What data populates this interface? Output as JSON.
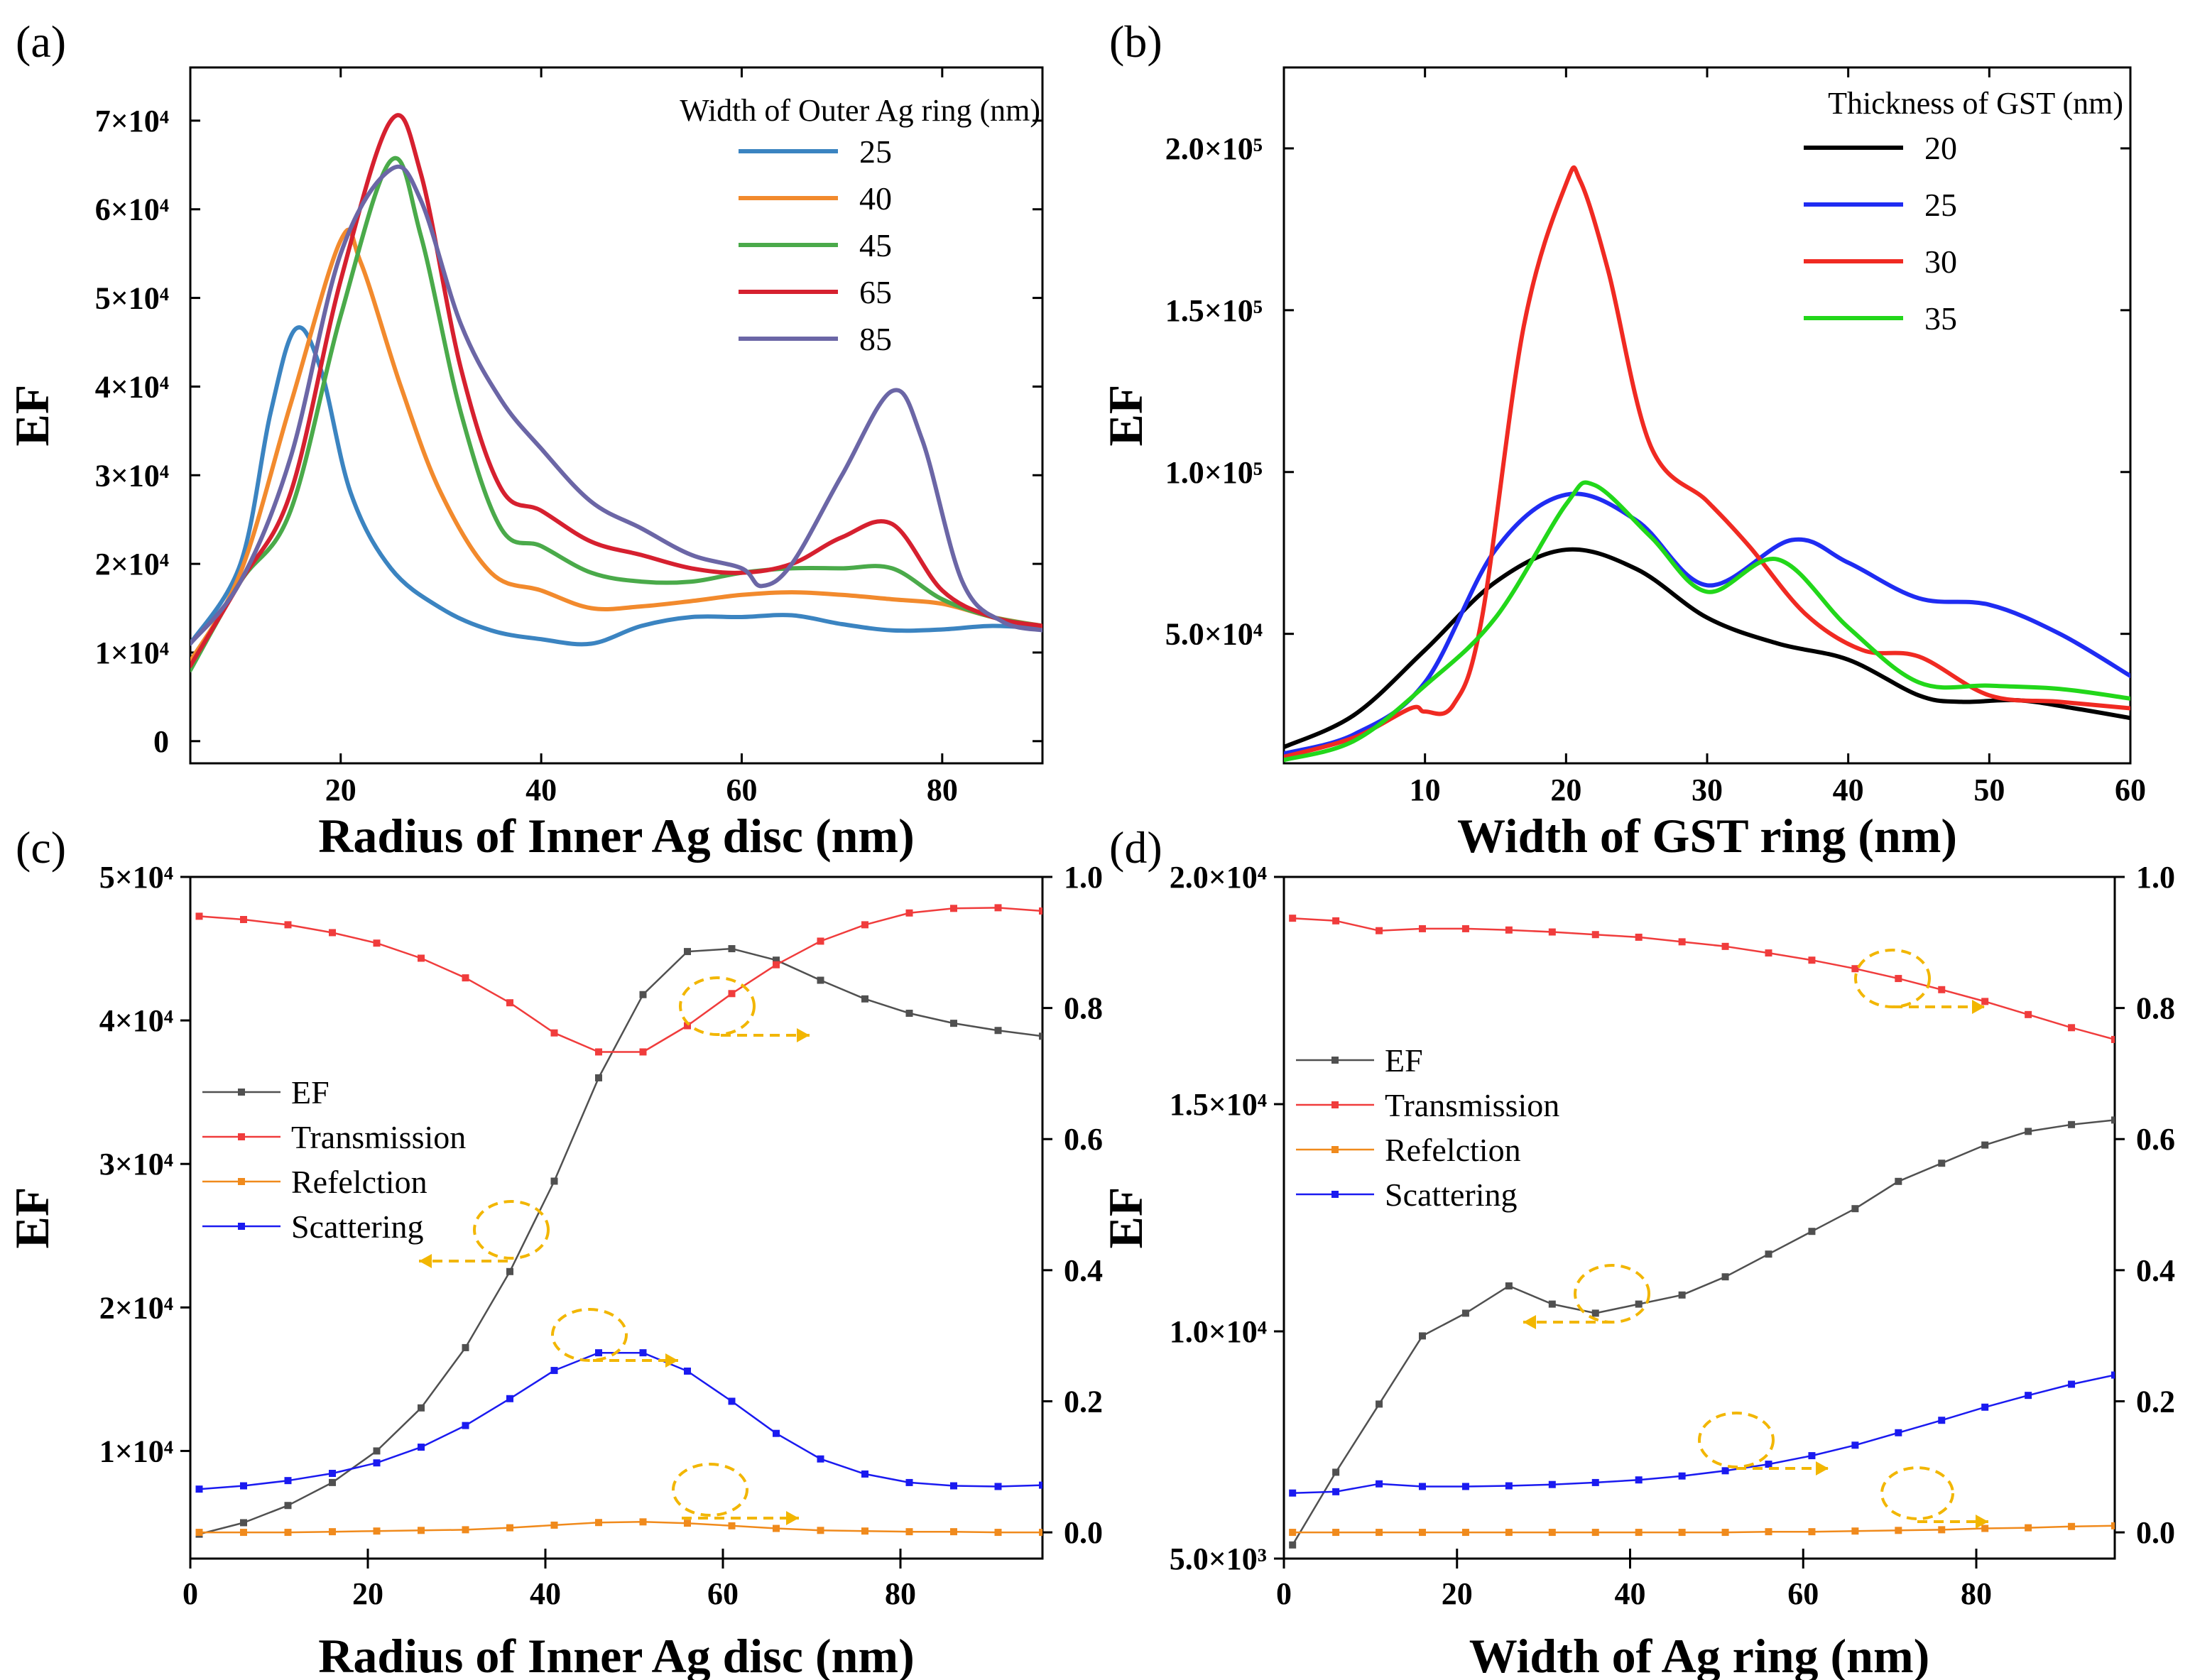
{
  "chart_data": [
    {
      "panel": "(a)",
      "type": "line",
      "xlabel": "Radius of Inner Ag disc (nm)",
      "ylabel": "EF",
      "xlim": [
        5,
        90
      ],
      "ylim": [
        -2500,
        76000
      ],
      "xticks": [
        20,
        40,
        60,
        80
      ],
      "yticks": [
        {
          "v": 0,
          "label": "0"
        },
        {
          "v": 10000,
          "label": "1×10⁴"
        },
        {
          "v": 20000,
          "label": "2×10⁴"
        },
        {
          "v": 30000,
          "label": "3×10⁴"
        },
        {
          "v": 40000,
          "label": "4×10⁴"
        },
        {
          "v": 50000,
          "label": "5×10⁴"
        },
        {
          "v": 60000,
          "label": "6×10⁴"
        },
        {
          "v": 70000,
          "label": "7×10⁴"
        }
      ],
      "legend_title": "Width of Outer Ag ring (nm)",
      "series": [
        {
          "name": "25",
          "color": "#3b84c1",
          "x": [
            5,
            10,
            13,
            15.5,
            18,
            21,
            25,
            30,
            35,
            40,
            45,
            50,
            55,
            60,
            65,
            70,
            75,
            80,
            85,
            90
          ],
          "y": [
            11000,
            20000,
            37000,
            46500,
            42000,
            28000,
            19500,
            15000,
            12500,
            11500,
            11000,
            13000,
            14000,
            14000,
            14200,
            13200,
            12500,
            12600,
            13000,
            12700
          ]
        },
        {
          "name": "40",
          "color": "#f28a2d",
          "x": [
            5,
            10,
            15,
            20,
            22,
            26,
            30,
            35,
            40,
            45,
            50,
            55,
            60,
            65,
            70,
            75,
            80,
            85,
            90
          ],
          "y": [
            9000,
            19000,
            38000,
            56500,
            54000,
            40000,
            28000,
            19000,
            17000,
            15000,
            15200,
            15800,
            16500,
            16800,
            16500,
            16000,
            15500,
            14000,
            13000
          ]
        },
        {
          "name": "45",
          "color": "#4aaa4a",
          "x": [
            5,
            10,
            15,
            20,
            25,
            28,
            32,
            36,
            40,
            45,
            50,
            55,
            60,
            65,
            70,
            75,
            80,
            85,
            90
          ],
          "y": [
            8000,
            18000,
            26000,
            48000,
            65500,
            57000,
            37000,
            24000,
            22000,
            19000,
            18000,
            18000,
            19000,
            19500,
            19500,
            19500,
            16000,
            14000,
            13000
          ]
        },
        {
          "name": "65",
          "color": "#d6202f",
          "x": [
            5,
            10,
            15,
            20,
            25,
            28,
            32,
            36,
            40,
            45,
            50,
            55,
            60,
            65,
            70,
            75,
            80,
            85,
            90
          ],
          "y": [
            8500,
            18000,
            28000,
            52000,
            70000,
            64000,
            42000,
            28500,
            26000,
            22500,
            21000,
            19500,
            19000,
            20000,
            23000,
            24500,
            17000,
            14000,
            13000
          ]
        },
        {
          "name": "85",
          "color": "#6b66a6",
          "x": [
            5,
            10,
            15,
            20,
            25,
            28,
            32,
            36,
            40,
            45,
            50,
            55,
            60,
            62,
            65,
            70,
            75,
            78,
            82,
            86,
            90
          ],
          "y": [
            11000,
            18000,
            32000,
            55000,
            64500,
            61000,
            47000,
            38500,
            33000,
            27000,
            24000,
            21000,
            19500,
            17500,
            20000,
            30000,
            39500,
            34000,
            18000,
            13500,
            12500
          ]
        }
      ]
    },
    {
      "panel": "(b)",
      "type": "line",
      "xlabel": "Width of GST ring (nm)",
      "ylabel": "EF",
      "xlim": [
        0,
        60
      ],
      "ylim": [
        10000,
        225000
      ],
      "xticks": [
        10,
        20,
        30,
        40,
        50,
        60
      ],
      "yticks": [
        {
          "v": 50000,
          "label": "5.0×10⁴"
        },
        {
          "v": 100000,
          "label": "1.0×10⁵"
        },
        {
          "v": 150000,
          "label": "1.5×10⁵"
        },
        {
          "v": 200000,
          "label": "2.0×10⁵"
        }
      ],
      "legend_title": "Thickness of GST (nm)",
      "series": [
        {
          "name": "20",
          "color": "#000000",
          "x": [
            0,
            5,
            10,
            15,
            20,
            25,
            30,
            35,
            40,
            45,
            48,
            52,
            56,
            60
          ],
          "y": [
            15000,
            25000,
            45000,
            66000,
            76000,
            70000,
            55000,
            47000,
            42000,
            31000,
            29000,
            29500,
            27000,
            24000
          ]
        },
        {
          "name": "25",
          "color": "#1f2cf2",
          "x": [
            0,
            5,
            10,
            15,
            20,
            25,
            30,
            36,
            40,
            45,
            50,
            55,
            60
          ],
          "y": [
            13000,
            19000,
            35000,
            76000,
            93000,
            85000,
            65000,
            79000,
            72000,
            61000,
            59000,
            50000,
            37000
          ]
        },
        {
          "name": "30",
          "color": "#f02a22",
          "x": [
            0,
            5,
            9,
            10,
            12,
            14,
            17,
            20,
            21,
            23,
            26,
            30,
            33,
            37,
            41,
            45,
            50,
            55,
            60
          ],
          "y": [
            12000,
            18000,
            27000,
            26000,
            28000,
            54000,
            145000,
            189000,
            190000,
            162000,
            108000,
            91000,
            77000,
            56000,
            45000,
            43000,
            31000,
            29000,
            27000
          ]
        },
        {
          "name": "35",
          "color": "#22d71a",
          "x": [
            0,
            5,
            10,
            15,
            20,
            22,
            26,
            30,
            35,
            40,
            45,
            50,
            55,
            60
          ],
          "y": [
            11000,
            17000,
            34000,
            55000,
            90000,
            96000,
            80000,
            63000,
            73000,
            52000,
            35000,
            34000,
            33000,
            30000
          ]
        }
      ]
    },
    {
      "panel": "(c)",
      "type": "line",
      "xlabel": "Radius of Inner Ag disc (nm)",
      "ylabel": "EF",
      "x_axis_ticks": [
        0,
        20,
        40,
        60,
        80
      ],
      "xlim": [
        0,
        96
      ],
      "ylim_left": [
        2500,
        50000
      ],
      "ylim_right": [
        -0.04,
        1.0
      ],
      "yticks_left": [
        {
          "v": 10000,
          "label": "1×10⁴"
        },
        {
          "v": 20000,
          "label": "2×10⁴"
        },
        {
          "v": 30000,
          "label": "3×10⁴"
        },
        {
          "v": 40000,
          "label": "4×10⁴"
        },
        {
          "v": 50000,
          "label": "5×10⁴"
        }
      ],
      "yticks_right": [
        {
          "v": 0.0,
          "label": "0.0"
        },
        {
          "v": 0.2,
          "label": "0.2"
        },
        {
          "v": 0.4,
          "label": "0.4"
        },
        {
          "v": 0.6,
          "label": "0.6"
        },
        {
          "v": 0.8,
          "label": "0.8"
        },
        {
          "v": 1.0,
          "label": "1.0"
        }
      ],
      "x": [
        1,
        6,
        11,
        16,
        21,
        26,
        31,
        36,
        41,
        46,
        51,
        56,
        61,
        66,
        71,
        76,
        81,
        86,
        91,
        96
      ],
      "series": [
        {
          "name": "EF",
          "axis": "left",
          "color": "#505050",
          "y": [
            4200,
            5000,
            6200,
            7800,
            10000,
            13000,
            17200,
            22500,
            28800,
            36000,
            41800,
            44800,
            45000,
            44200,
            42800,
            41500,
            40500,
            39800,
            39300,
            38900
          ]
        },
        {
          "name": "Transmission",
          "axis": "right",
          "color": "#f03c3c",
          "y": [
            0.94,
            0.935,
            0.927,
            0.915,
            0.899,
            0.876,
            0.846,
            0.808,
            0.762,
            0.733,
            0.733,
            0.773,
            0.822,
            0.866,
            0.902,
            0.927,
            0.945,
            0.952,
            0.953,
            0.948
          ]
        },
        {
          "name": "Refelction",
          "axis": "right",
          "color": "#f08a1c",
          "y": [
            0.0,
            0.0,
            0.0,
            0.001,
            0.002,
            0.003,
            0.004,
            0.007,
            0.011,
            0.015,
            0.016,
            0.014,
            0.01,
            0.006,
            0.003,
            0.002,
            0.001,
            0.001,
            0.0,
            0.0
          ]
        },
        {
          "name": "Scattering",
          "axis": "right",
          "color": "#1a1af0",
          "y": [
            0.066,
            0.071,
            0.079,
            0.09,
            0.106,
            0.13,
            0.163,
            0.204,
            0.247,
            0.274,
            0.274,
            0.246,
            0.2,
            0.151,
            0.112,
            0.089,
            0.076,
            0.071,
            0.07,
            0.072
          ]
        }
      ]
    },
    {
      "panel": "(d)",
      "type": "line",
      "xlabel": "Width of Ag ring (nm)",
      "ylabel": "EF",
      "x_axis_ticks": [
        0,
        20,
        40,
        60,
        80
      ],
      "xlim": [
        0,
        96
      ],
      "ylim_left": [
        5000,
        20000
      ],
      "ylim_right": [
        -0.04,
        1.0
      ],
      "yticks_left": [
        {
          "v": 5000,
          "label": "5.0×10³"
        },
        {
          "v": 10000,
          "label": "1.0×10⁴"
        },
        {
          "v": 15000,
          "label": "1.5×10⁴"
        },
        {
          "v": 20000,
          "label": "2.0×10⁴"
        }
      ],
      "yticks_right": [
        {
          "v": 0.0,
          "label": "0.0"
        },
        {
          "v": 0.2,
          "label": "0.2"
        },
        {
          "v": 0.4,
          "label": "0.4"
        },
        {
          "v": 0.6,
          "label": "0.6"
        },
        {
          "v": 0.8,
          "label": "0.8"
        },
        {
          "v": 1.0,
          "label": "1.0"
        }
      ],
      "x": [
        1,
        6,
        11,
        16,
        21,
        26,
        31,
        36,
        41,
        46,
        51,
        56,
        61,
        66,
        71,
        76,
        81,
        86,
        91,
        96
      ],
      "series": [
        {
          "name": "EF",
          "axis": "left",
          "color": "#505050",
          "y": [
            5300,
            6900,
            8400,
            9900,
            10400,
            11000,
            10600,
            10400,
            10600,
            10800,
            11200,
            11700,
            12200,
            12700,
            13300,
            13700,
            14100,
            14400,
            14550,
            14650
          ]
        },
        {
          "name": "Transmission",
          "axis": "right",
          "color": "#f03c3c",
          "y": [
            0.937,
            0.933,
            0.918,
            0.921,
            0.921,
            0.919,
            0.916,
            0.912,
            0.908,
            0.901,
            0.894,
            0.884,
            0.873,
            0.86,
            0.845,
            0.828,
            0.81,
            0.79,
            0.77,
            0.752
          ]
        },
        {
          "name": "Refelction",
          "axis": "right",
          "color": "#f08a1c",
          "y": [
            0.0,
            0.0,
            0.0,
            0.0,
            0.0,
            0.0,
            0.0,
            0.0,
            0.0,
            0.0,
            0.0,
            0.001,
            0.001,
            0.002,
            0.003,
            0.004,
            0.006,
            0.007,
            0.009,
            0.01
          ]
        },
        {
          "name": "Scattering",
          "axis": "right",
          "color": "#1a1af0",
          "y": [
            0.06,
            0.062,
            0.074,
            0.07,
            0.07,
            0.071,
            0.073,
            0.076,
            0.08,
            0.086,
            0.094,
            0.104,
            0.117,
            0.133,
            0.152,
            0.171,
            0.191,
            0.209,
            0.226,
            0.24
          ]
        }
      ]
    }
  ]
}
